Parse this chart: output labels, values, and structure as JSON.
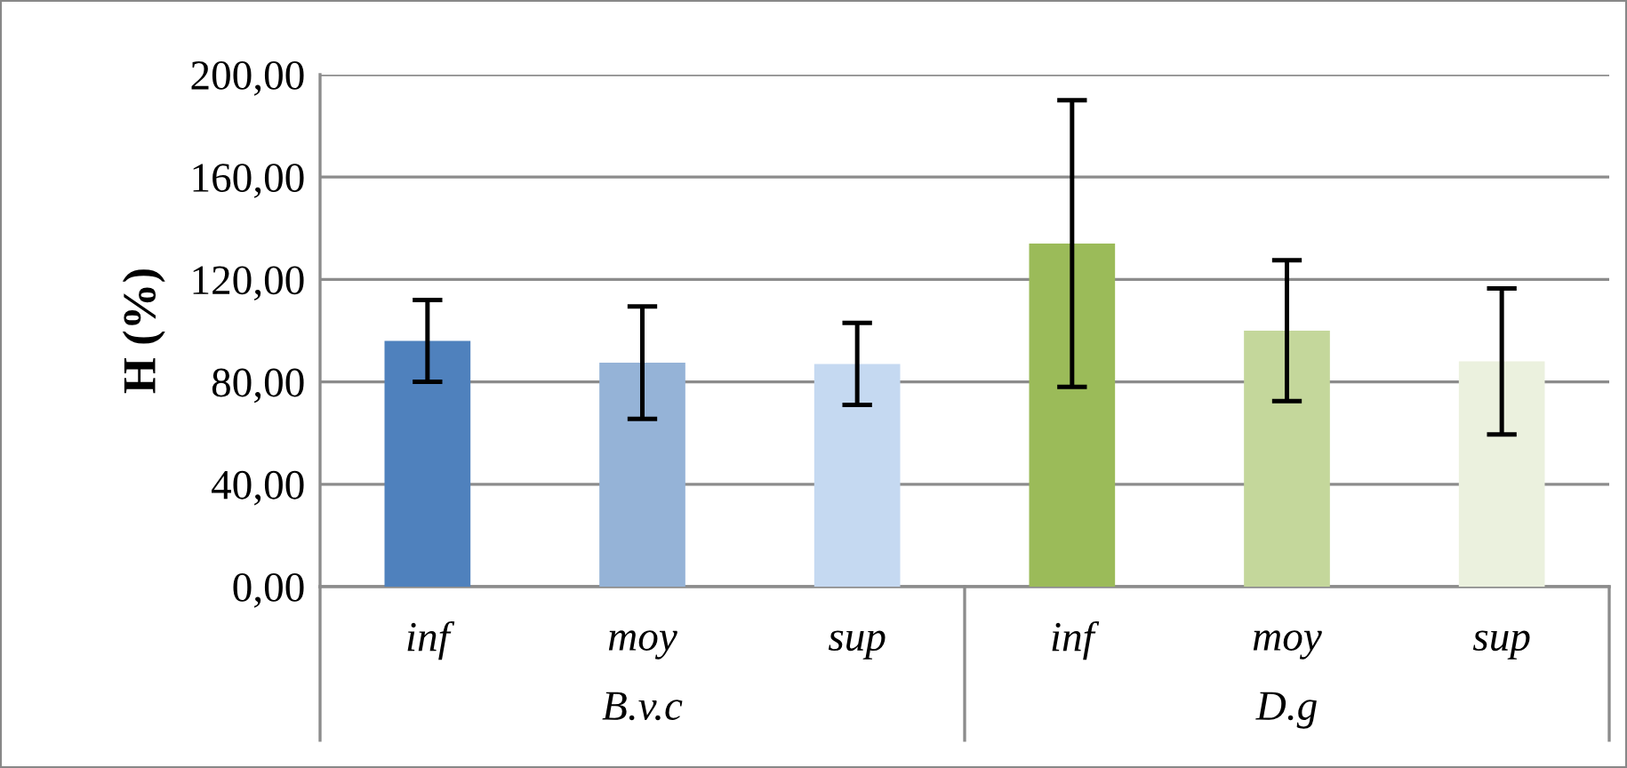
{
  "chart_data": {
    "type": "bar",
    "ylabel": "H (%)",
    "categories": [
      "inf",
      "moy",
      "sup",
      "inf",
      "moy",
      "sup"
    ],
    "values": [
      96,
      87.5,
      87,
      134,
      100,
      88
    ],
    "errors": [
      16,
      22,
      16,
      56,
      27.5,
      28.5
    ],
    "colors": [
      "#4f81bd",
      "#95b3d7",
      "#c5d9f1",
      "#9bbb59",
      "#c4d79b",
      "#ebf1de"
    ],
    "ylim": [
      0,
      200
    ],
    "yticks": [
      {
        "value": 0,
        "label": "0,00"
      },
      {
        "value": 40,
        "label": "40,00"
      },
      {
        "value": 80,
        "label": "80,00"
      },
      {
        "value": 120,
        "label": "120,00"
      },
      {
        "value": 160,
        "label": "160,00"
      },
      {
        "value": 200,
        "label": "200,00"
      }
    ],
    "grid": "y",
    "annotations": [
      "B.v.c",
      "D.g"
    ]
  }
}
